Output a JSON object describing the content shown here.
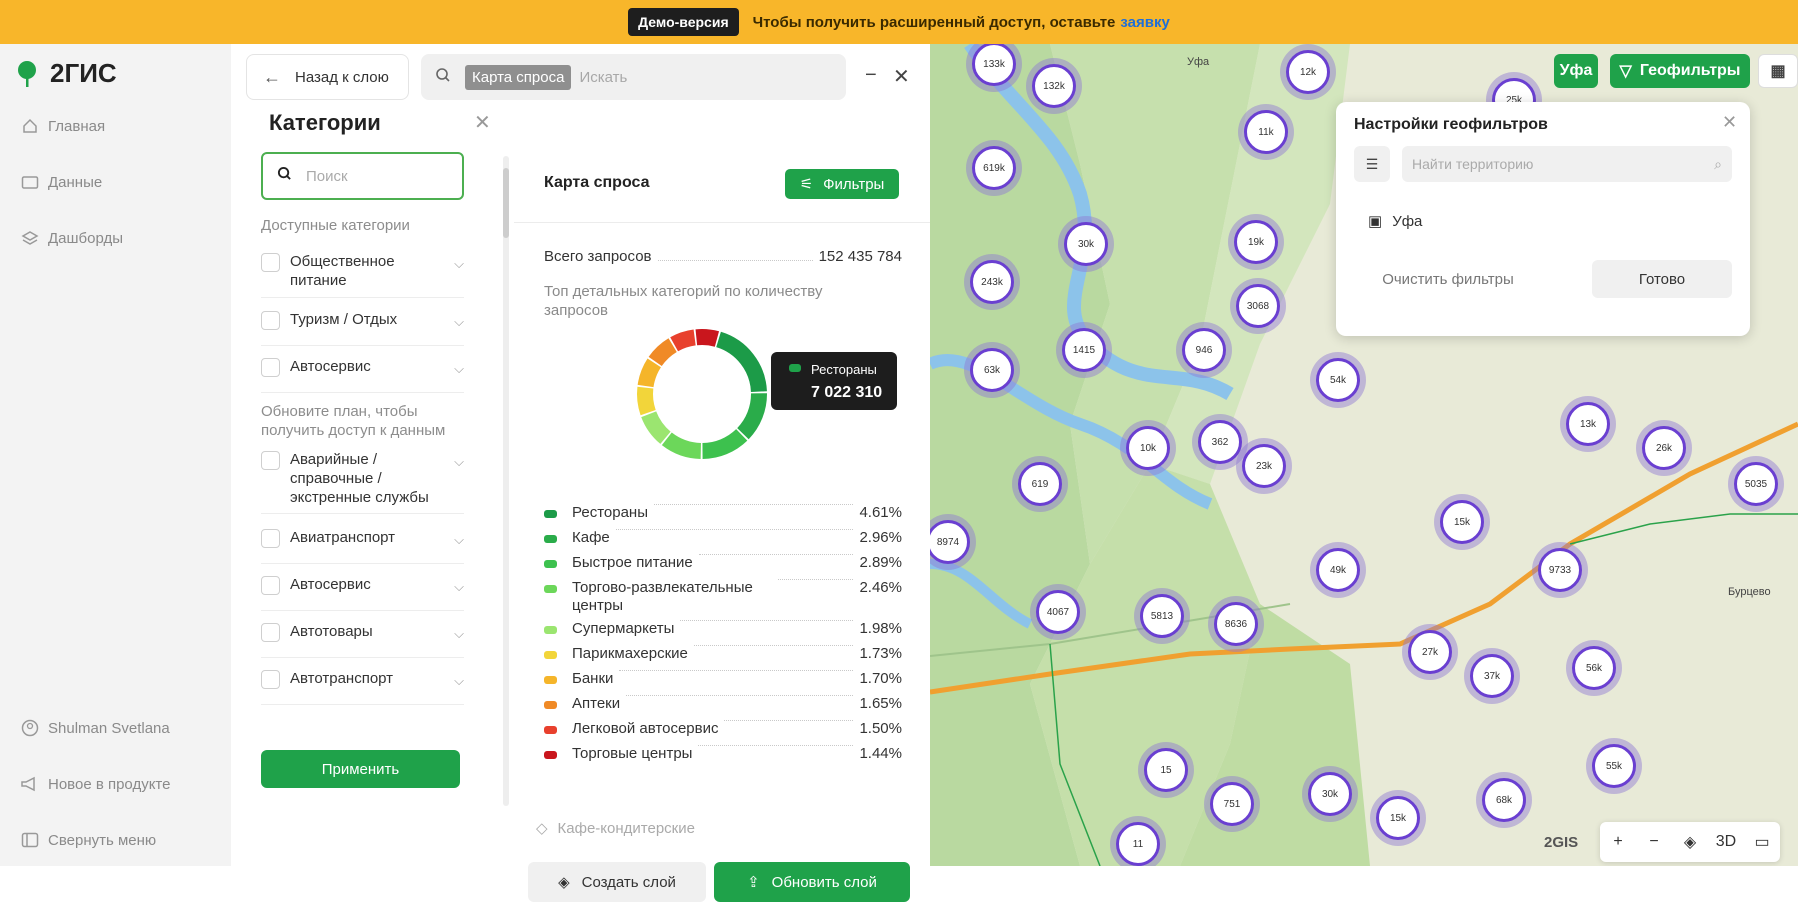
{
  "banner": {
    "badge": "Демо-версия",
    "text": "Чтобы получить расширенный доступ, оставьте",
    "link": "заявку"
  },
  "nav": {
    "logo": "2ГИС",
    "main": "Главная",
    "data": "Данные",
    "dashboards": "Дашборды",
    "user": "Shulman Svetlana",
    "news": "Новое в продукте",
    "collapse": "Свернуть меню"
  },
  "top": {
    "back": "Назад к слою",
    "chip": "Карта спроса",
    "placeholder": "Искать"
  },
  "categories": {
    "title": "Категории",
    "search_placeholder": "Поиск",
    "available": "Доступные категории",
    "upgrade": "Обновите план, чтобы получить доступ к данным",
    "items": [
      "Общественное питание",
      "Туризм / Отдых",
      "Автосервис",
      "Аварийные / справочные / экстренные службы",
      "Авиатранспорт",
      "Автосервис",
      "Автотовары",
      "Автотранспорт"
    ],
    "apply": "Применить"
  },
  "demand": {
    "title": "Карта спроса",
    "filters": "Фильтры",
    "total_label": "Всего запросов",
    "total_value": "152 435 784",
    "top_caption": "Топ детальных категорий по количеству запросов",
    "tooltip": {
      "name": "Рестораны",
      "value": "7 022 310"
    },
    "more": "Кафе-кондитерские",
    "create": "Создать слой",
    "update": "Обновить слой"
  },
  "chart_data": {
    "type": "pie",
    "categories": [
      "Рестораны",
      "Кафе",
      "Быстрое питание",
      "Торгово-развлекательные центры",
      "Супермаркеты",
      "Парикмахерские",
      "Банки",
      "Аптеки",
      "Легковой автосервис",
      "Торговые центры"
    ],
    "values": [
      4.61,
      2.96,
      2.89,
      2.46,
      1.98,
      1.73,
      1.7,
      1.65,
      1.5,
      1.44
    ],
    "labels": [
      "4.61%",
      "2.96%",
      "2.89%",
      "2.46%",
      "1.98%",
      "1.73%",
      "1.70%",
      "1.65%",
      "1.50%",
      "1.44%"
    ],
    "colors": [
      "#1c9b48",
      "#2aac4a",
      "#3dc14e",
      "#6cd75a",
      "#9be570",
      "#f2d53a",
      "#f5b52a",
      "#f08a26",
      "#e8402d",
      "#c9161d"
    ]
  },
  "map": {
    "city_btn": "Уфа",
    "geo_btn": "Геофильтры",
    "geo_panel": {
      "title": "Настройки геофильтров",
      "placeholder": "Найти территорию",
      "item": "Уфа",
      "clear": "Очистить фильтры",
      "done": "Готово"
    },
    "clusters": [
      "133k",
      "132k",
      "12k",
      "25k",
      "11k",
      "619k",
      "30k",
      "19k",
      "243k",
      "3068",
      "1415",
      "946",
      "63k",
      "54k",
      "13k",
      "26k",
      "10k",
      "362",
      "23k",
      "619",
      "15k",
      "5035",
      "8974",
      "4067",
      "5813",
      "8636",
      "49k",
      "9733",
      "27k",
      "37k",
      "56k",
      "15",
      "751",
      "30k",
      "15k",
      "68k",
      "55k",
      "11"
    ],
    "labels": [
      "Уфа",
      "Бурцево",
      "2GIS"
    ],
    "zoom": [
      "+",
      "−",
      "3D"
    ]
  }
}
